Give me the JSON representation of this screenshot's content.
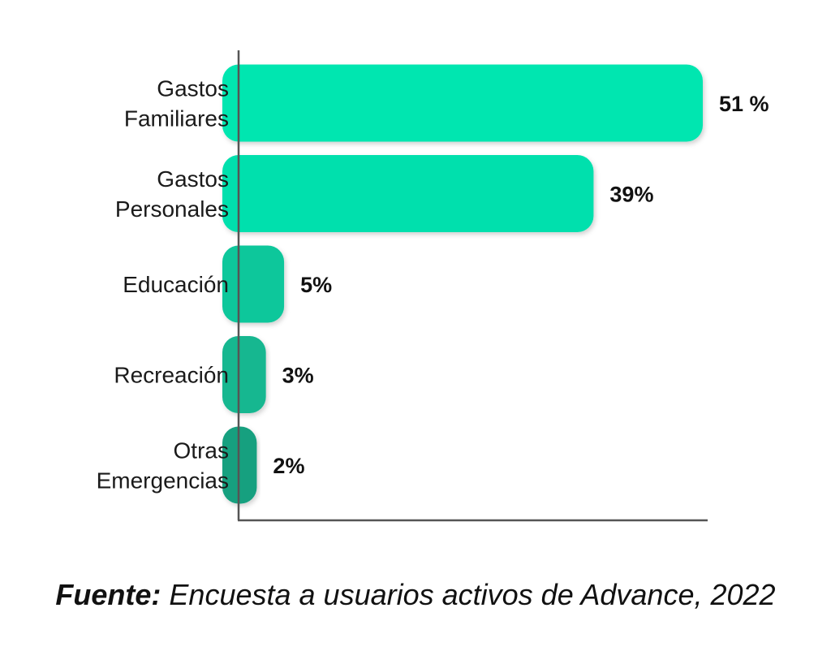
{
  "chart_data": {
    "type": "bar",
    "orientation": "horizontal",
    "categories": [
      [
        "Gastos",
        "Familiares"
      ],
      [
        "Gastos",
        "Personales"
      ],
      [
        "Educación"
      ],
      [
        "Recreación"
      ],
      [
        "Otras",
        "Emergencias"
      ]
    ],
    "values": [
      51,
      39,
      5,
      3,
      2
    ],
    "value_labels": [
      "51 %",
      "39%",
      "5%",
      "3%",
      "2%"
    ],
    "xlim": [
      0,
      51
    ],
    "colors": [
      "#05e6b0",
      "#05e0ad",
      "#0bc79b",
      "#13b790",
      "#19a07f"
    ],
    "title": "",
    "xlabel": "",
    "ylabel": "",
    "grid": false,
    "legend": "none"
  },
  "source": {
    "label": "Fuente:",
    "text": " Encuesta a usuarios activos de Advance, 2022"
  }
}
